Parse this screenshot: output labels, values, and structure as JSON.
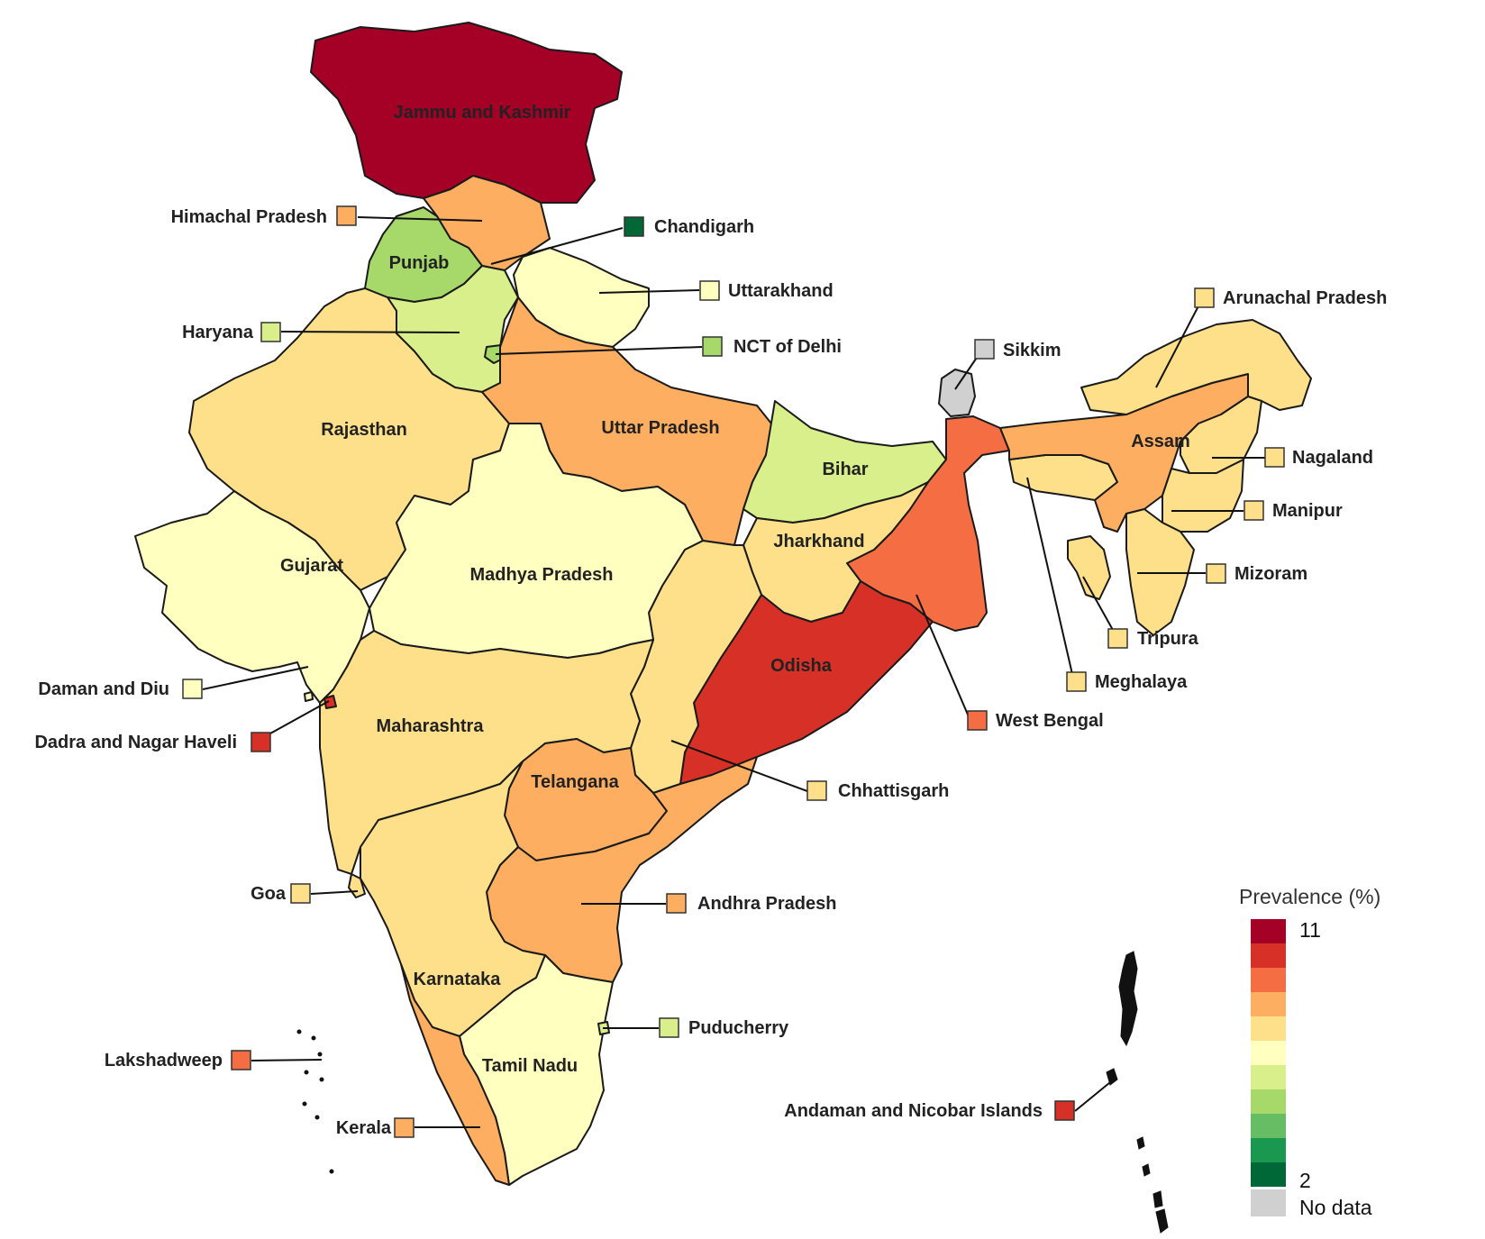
{
  "palette": {
    "c11": "#a50026",
    "c10": "#d73027",
    "c9": "#f46d43",
    "c8": "#fdae61",
    "c7": "#fee08b",
    "c6": "#ffffbf",
    "c5": "#d9ef8b",
    "c4": "#a6d96a",
    "c3": "#66bd63",
    "c2": "#1a9850",
    "c1": "#006837",
    "nodata": "#d0d0d0"
  },
  "regions": {
    "jammu_kashmir": {
      "name": "Jammu and Kashmir",
      "color_key": "c11"
    },
    "himachal": {
      "name": "Himachal Pradesh",
      "color_key": "c8"
    },
    "chandigarh": {
      "name": "Chandigarh",
      "color_key": "c1"
    },
    "punjab": {
      "name": "Punjab",
      "color_key": "c4"
    },
    "uttarakhand": {
      "name": "Uttarakhand",
      "color_key": "c6"
    },
    "haryana": {
      "name": "Haryana",
      "color_key": "c5"
    },
    "delhi": {
      "name": "NCT of Delhi",
      "color_key": "c4"
    },
    "rajasthan": {
      "name": "Rajasthan",
      "color_key": "c7"
    },
    "uttar_pradesh": {
      "name": "Uttar Pradesh",
      "color_key": "c8"
    },
    "bihar": {
      "name": "Bihar",
      "color_key": "c5"
    },
    "sikkim": {
      "name": "Sikkim",
      "color_key": "nodata"
    },
    "arunachal": {
      "name": "Arunachal Pradesh",
      "color_key": "c7"
    },
    "assam": {
      "name": "Assam",
      "color_key": "c8"
    },
    "nagaland": {
      "name": "Nagaland",
      "color_key": "c7"
    },
    "manipur": {
      "name": "Manipur",
      "color_key": "c7"
    },
    "mizoram": {
      "name": "Mizoram",
      "color_key": "c7"
    },
    "tripura": {
      "name": "Tripura",
      "color_key": "c7"
    },
    "meghalaya": {
      "name": "Meghalaya",
      "color_key": "c7"
    },
    "west_bengal": {
      "name": "West Bengal",
      "color_key": "c9"
    },
    "jharkhand": {
      "name": "Jharkhand",
      "color_key": "c7"
    },
    "odisha": {
      "name": "Odisha",
      "color_key": "c10"
    },
    "chhattisgarh": {
      "name": "Chhattisgarh",
      "color_key": "c7"
    },
    "gujarat": {
      "name": "Gujarat",
      "color_key": "c6"
    },
    "madhya_pradesh": {
      "name": "Madhya Pradesh",
      "color_key": "c6"
    },
    "daman_diu": {
      "name": "Daman and Diu",
      "color_key": "c6"
    },
    "dadra_nagar_haveli": {
      "name": "Dadra and Nagar Haveli",
      "color_key": "c10"
    },
    "maharashtra": {
      "name": "Maharashtra",
      "color_key": "c7"
    },
    "telangana": {
      "name": "Telangana",
      "color_key": "c8"
    },
    "goa": {
      "name": "Goa",
      "color_key": "c7"
    },
    "andhra_pradesh": {
      "name": "Andhra Pradesh",
      "color_key": "c8"
    },
    "karnataka": {
      "name": "Karnataka",
      "color_key": "c7"
    },
    "puducherry": {
      "name": "Puducherry",
      "color_key": "c5"
    },
    "lakshadweep": {
      "name": "Lakshadweep",
      "color_key": "c9"
    },
    "tamil_nadu": {
      "name": "Tamil Nadu",
      "color_key": "c6"
    },
    "kerala": {
      "name": "Kerala",
      "color_key": "c8"
    },
    "andaman_nicobar": {
      "name": "Andaman and Nicobar Islands",
      "color_key": "c10"
    }
  },
  "legend": {
    "title": "Prevalence (%)",
    "max_label": "11",
    "min_label": "2",
    "nodata_label": "No data",
    "bins": [
      "c11",
      "c10",
      "c9",
      "c8",
      "c7",
      "c6",
      "c5",
      "c4",
      "c3",
      "c2",
      "c1"
    ]
  }
}
